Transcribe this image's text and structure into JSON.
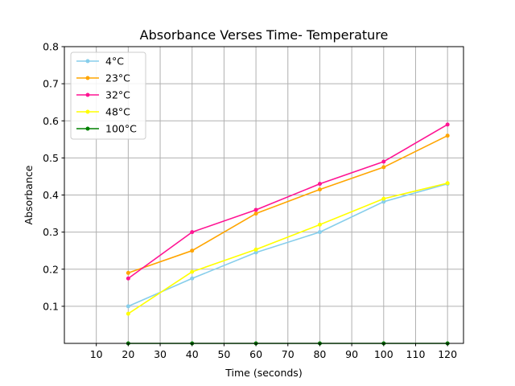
{
  "chart_data": {
    "type": "line",
    "title": "Absorbance Verses Time- Temperature",
    "xlabel": "Time (seconds)",
    "ylabel": "Absorbance",
    "x": [
      20,
      40,
      60,
      80,
      100,
      120
    ],
    "xticks": [
      "10",
      "20",
      "30",
      "40",
      "50",
      "60",
      "70",
      "80",
      "90",
      "100",
      "110",
      "120"
    ],
    "yticks": [
      "0.1",
      "0.2",
      "0.3",
      "0.4",
      "0.5",
      "0.6",
      "0.7",
      "0.8"
    ],
    "xlim": [
      0,
      125
    ],
    "ylim": [
      0,
      0.8
    ],
    "grid": true,
    "legend_position": "upper-left",
    "series": [
      {
        "name": "4°C",
        "color": "#87ceeb",
        "values": [
          0.1,
          0.175,
          0.245,
          0.3,
          0.382,
          0.43
        ]
      },
      {
        "name": "23°C",
        "color": "#ffa500",
        "values": [
          0.19,
          0.25,
          0.35,
          0.415,
          0.475,
          0.56
        ]
      },
      {
        "name": "32°C",
        "color": "#ff1493",
        "values": [
          0.175,
          0.3,
          0.36,
          0.43,
          0.49,
          0.59
        ]
      },
      {
        "name": "48°C",
        "color": "#ffff00",
        "values": [
          0.08,
          0.193,
          0.253,
          0.32,
          0.39,
          0.432
        ]
      },
      {
        "name": "100°C",
        "color": "#008000",
        "values": [
          0.0,
          0.0,
          0.0,
          0.0,
          0.0,
          0.0
        ]
      }
    ]
  }
}
